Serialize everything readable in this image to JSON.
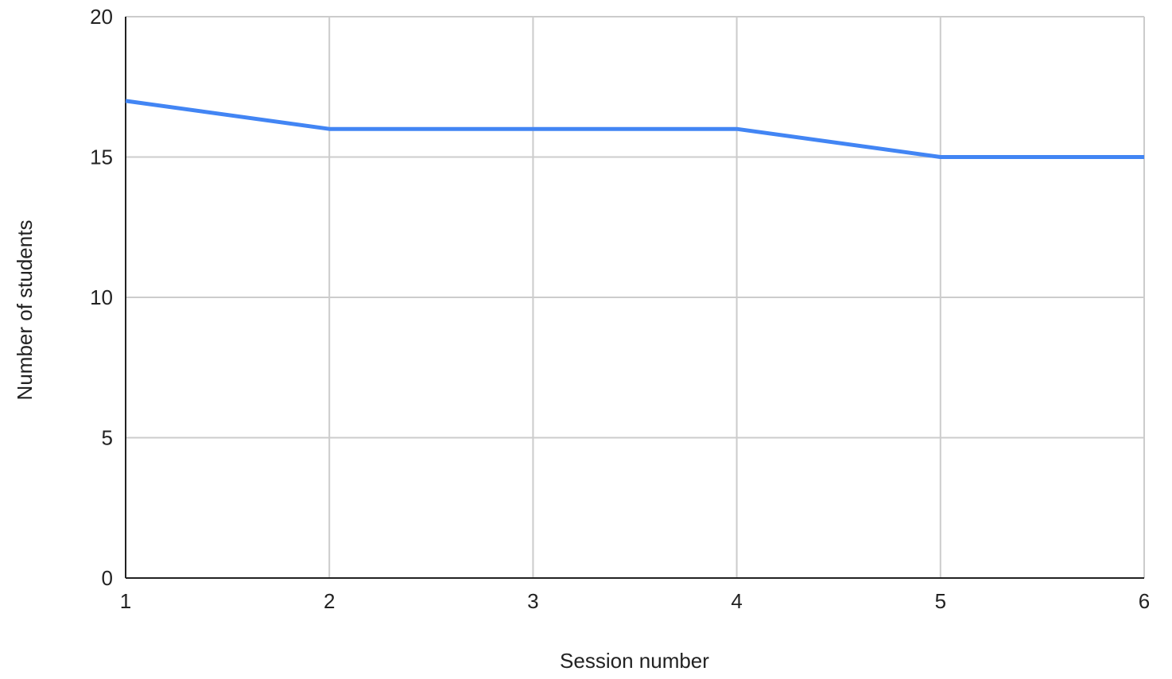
{
  "chart_data": {
    "type": "line",
    "title": "",
    "xlabel": "Session number",
    "ylabel": "Number of students",
    "x": [
      1,
      2,
      3,
      4,
      5,
      6
    ],
    "xlim": [
      1,
      6
    ],
    "ylim": [
      0,
      20
    ],
    "xticks": [
      1,
      2,
      3,
      4,
      5,
      6
    ],
    "yticks": [
      0,
      5,
      10,
      15,
      20
    ],
    "grid": true,
    "legend": "none",
    "series": [
      {
        "values": [
          17,
          16,
          16,
          16,
          15,
          15
        ],
        "color": "#4285f4"
      }
    ],
    "colors": {
      "grid": "#cccccc",
      "axis": "#222222"
    }
  }
}
